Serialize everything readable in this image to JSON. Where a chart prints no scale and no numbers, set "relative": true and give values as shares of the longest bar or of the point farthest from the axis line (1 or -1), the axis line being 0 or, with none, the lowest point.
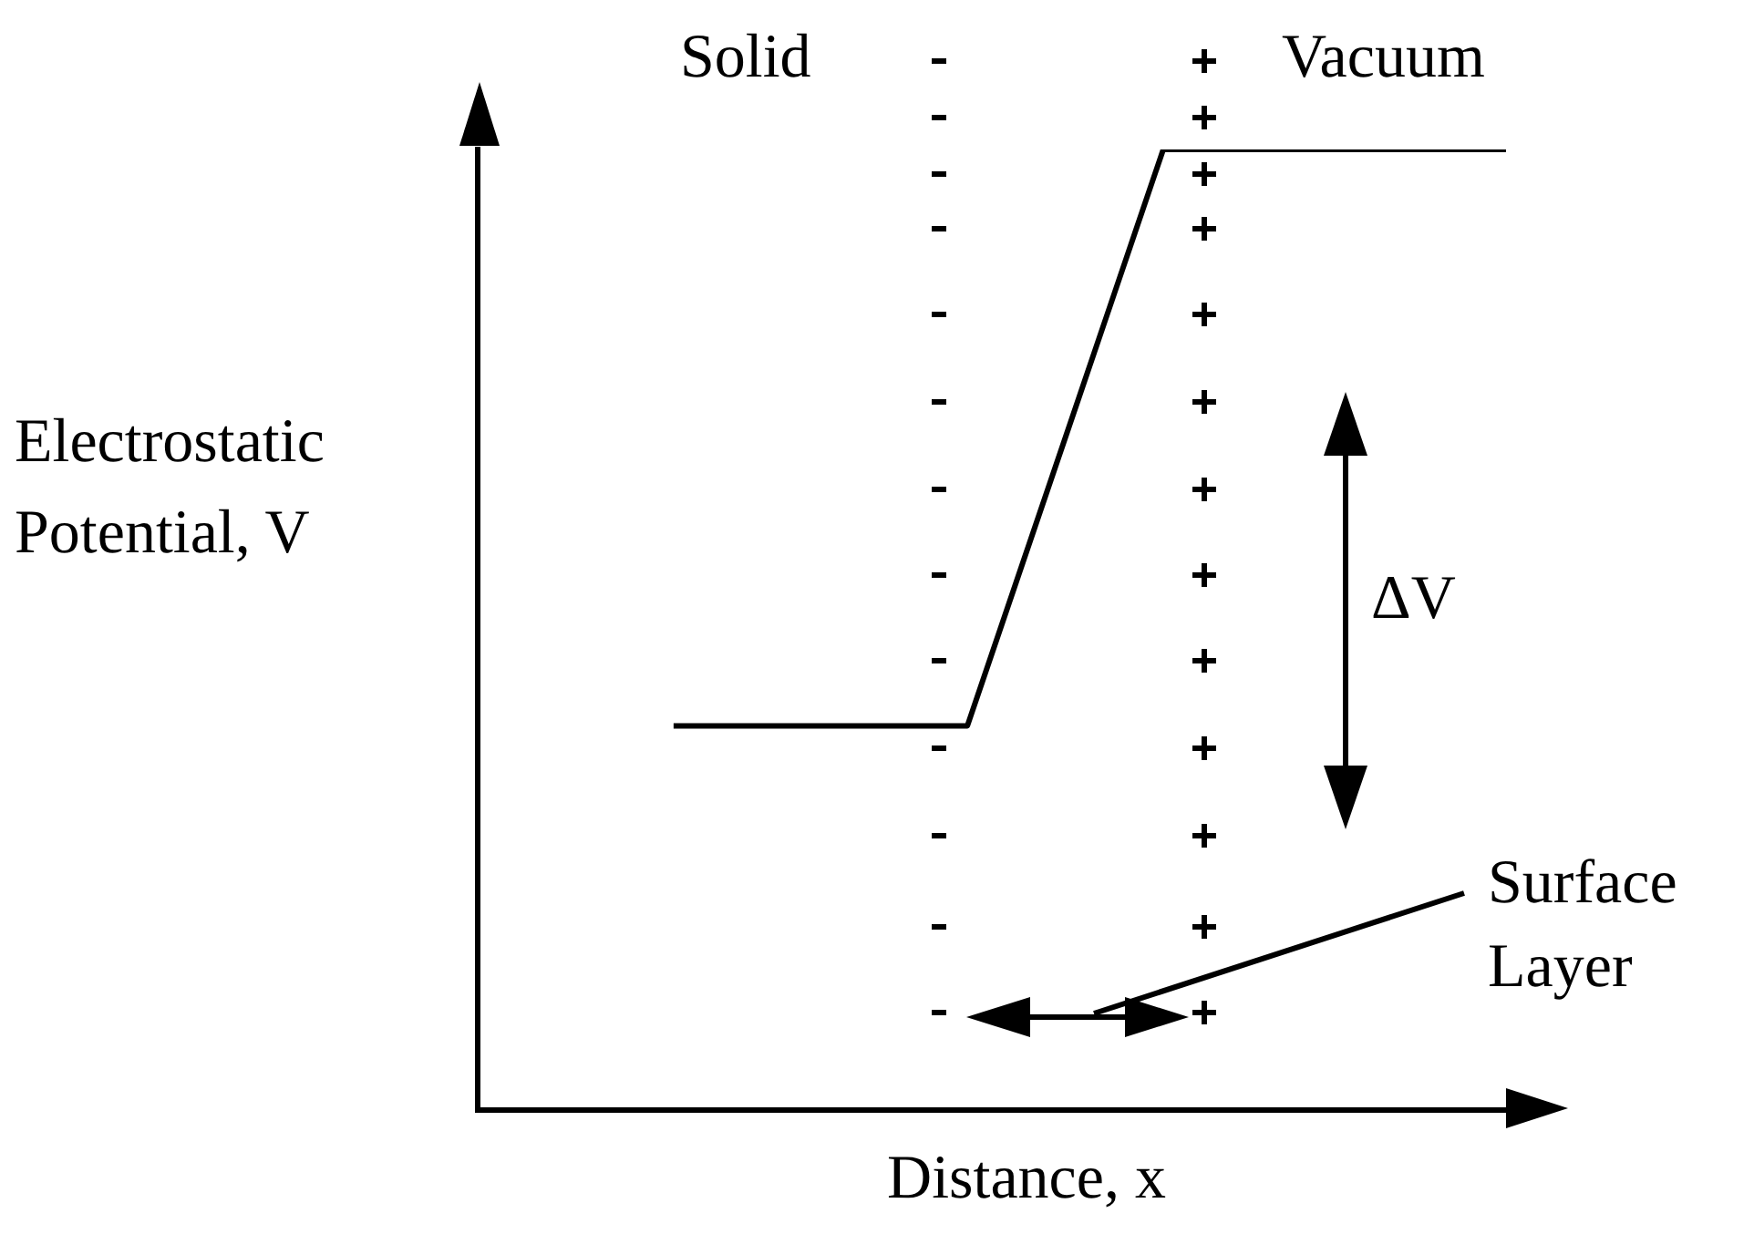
{
  "chart_data": {
    "type": "line",
    "relative": true,
    "xlabel": "Distance, x",
    "ylabel": "Electrostatic Potential, V",
    "categories": [
      null,
      null,
      null,
      null,
      null,
      null,
      null,
      null,
      null,
      null,
      null,
      null,
      null,
      null,
      null,
      null,
      null,
      null,
      null,
      null,
      null,
      null
    ],
    "series": [
      {
        "color": "#000000",
        "values": [
          null,
          null,
          null,
          null,
          0.4,
          0.4,
          0.4,
          0.4,
          0.4,
          0.4,
          0.4,
          0.55,
          0.7,
          0.85,
          1,
          1,
          1,
          1,
          1,
          1,
          1,
          1
        ]
      }
    ],
    "marker": "none",
    "line_style": "solid",
    "grid": false,
    "legend": false,
    "annotations": [
      "Solid",
      "Vacuum",
      "ΔV",
      "Surface Layer"
    ]
  }
}
